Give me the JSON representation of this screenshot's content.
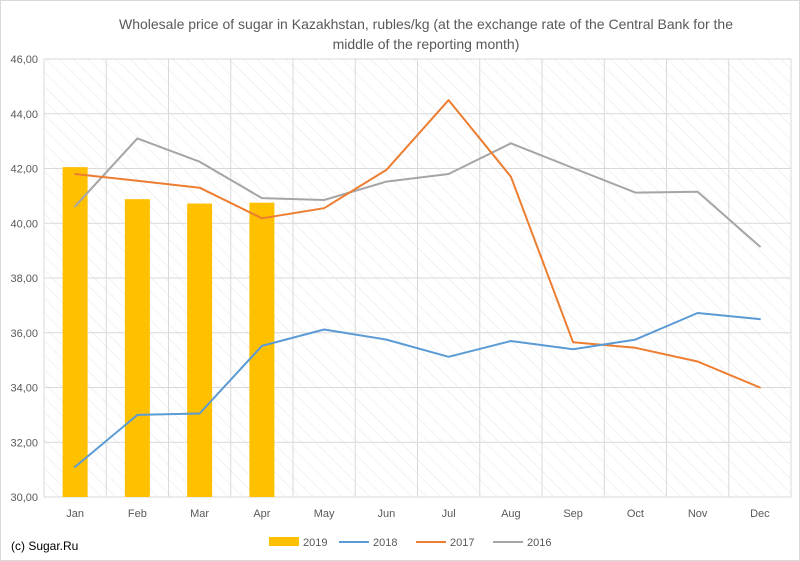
{
  "chart_data": {
    "type": "bar+line",
    "title": "Wholesale price of sugar in Kazakhstan, rubles/kg (at the exchange rate of the Central Bank for the middle of the reporting month)",
    "xlabel": "",
    "ylabel": "",
    "ylim": [
      30,
      46
    ],
    "y_tick_step": 2,
    "y_tick_labels": [
      "30,00",
      "32,00",
      "34,00",
      "36,00",
      "38,00",
      "40,00",
      "42,00",
      "44,00",
      "46,00"
    ],
    "categories": [
      "Jan",
      "Feb",
      "Mar",
      "Apr",
      "May",
      "Jun",
      "Jul",
      "Aug",
      "Sep",
      "Oct",
      "Nov",
      "Dec"
    ],
    "grid": true,
    "grid_style": "diagonal hatch",
    "legend_position": "bottom",
    "series": [
      {
        "name": "2019",
        "kind": "bar",
        "color": "#ffc000",
        "values": [
          42.05,
          40.88,
          40.72,
          40.75,
          null,
          null,
          null,
          null,
          null,
          null,
          null,
          null
        ]
      },
      {
        "name": "2018",
        "kind": "line",
        "color": "#5b9bd5",
        "values": [
          31.1,
          33.0,
          33.05,
          35.52,
          36.12,
          35.75,
          35.12,
          35.7,
          35.4,
          35.75,
          36.72,
          36.5
        ]
      },
      {
        "name": "2017",
        "kind": "line",
        "color": "#ed7d31",
        "values": [
          41.8,
          41.55,
          41.3,
          40.18,
          40.55,
          41.95,
          44.5,
          41.7,
          35.65,
          35.45,
          34.95,
          34.0
        ]
      },
      {
        "name": "2016",
        "kind": "line",
        "color": "#a5a5a5",
        "values": [
          40.62,
          43.1,
          42.25,
          40.92,
          40.85,
          41.52,
          41.8,
          42.92,
          42.02,
          41.12,
          41.15,
          39.15
        ]
      }
    ]
  },
  "footer": {
    "copyright": "(c) Sugar.Ru"
  }
}
